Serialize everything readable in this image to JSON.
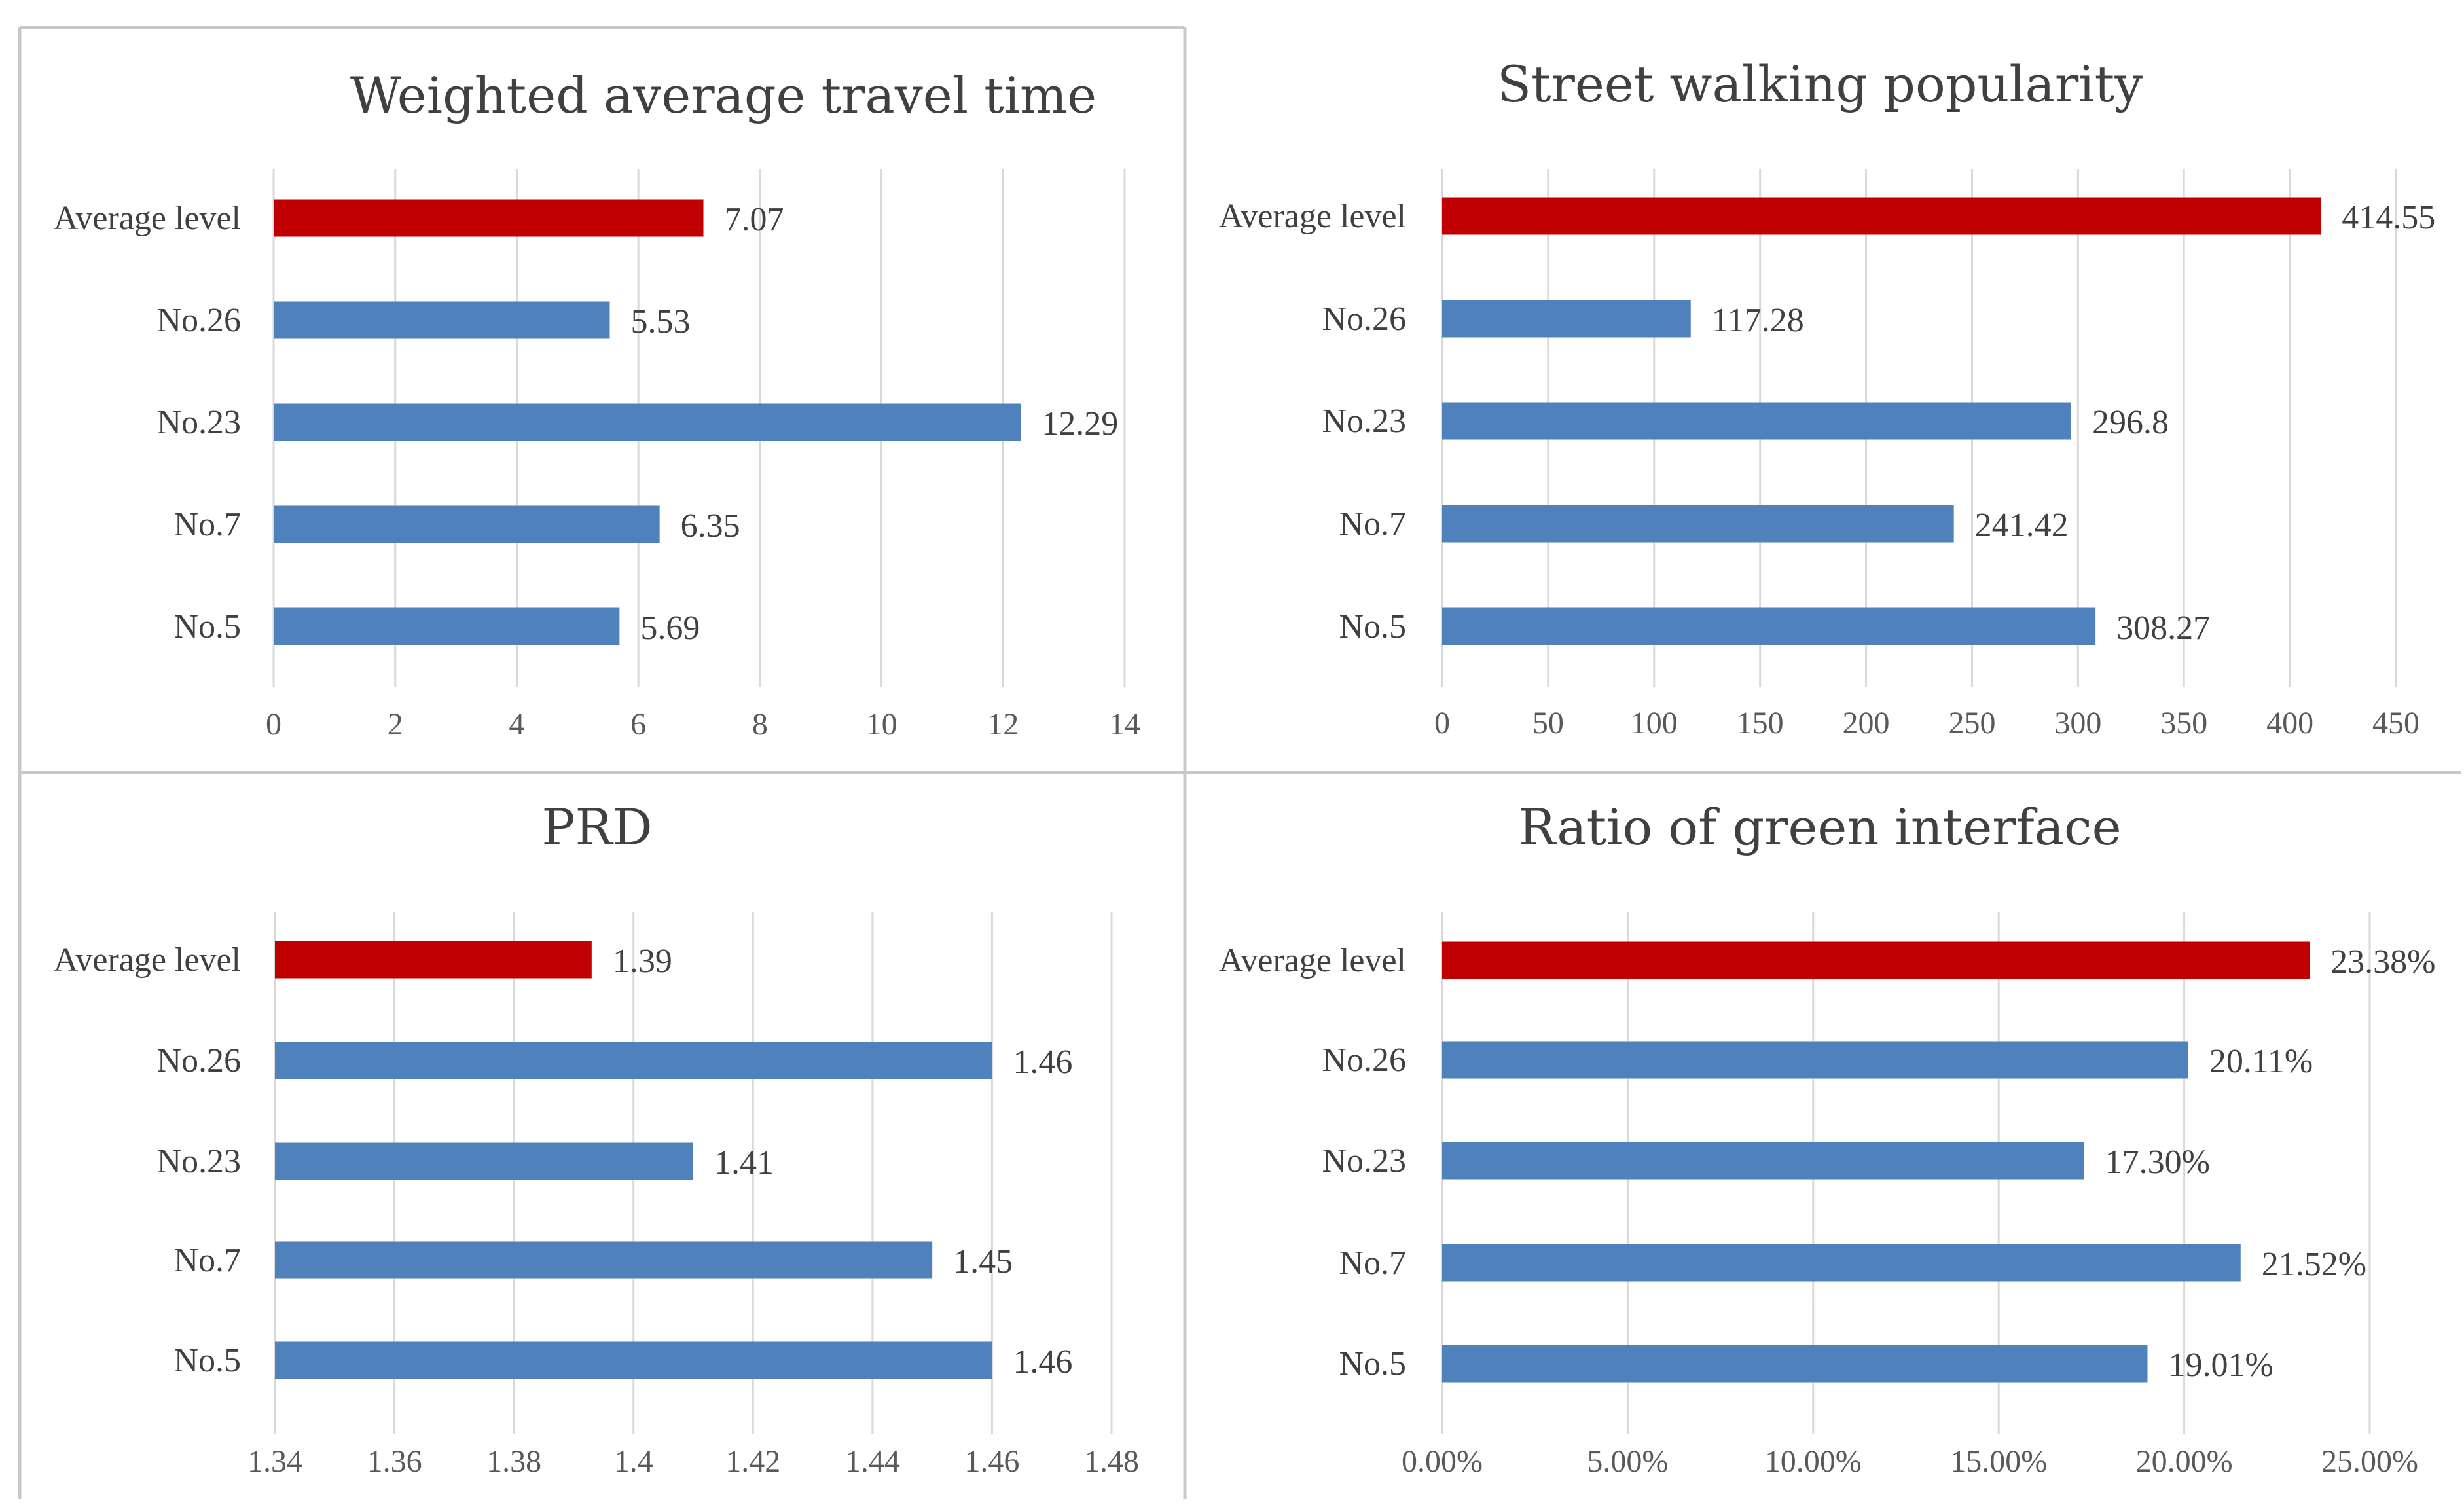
{
  "colors": {
    "average": "#c00000",
    "sample": "#4f81bd",
    "grid": "#d9d9d9",
    "text": "#404040",
    "frame": "#c8c8c8"
  },
  "chart_data": [
    {
      "type": "bar",
      "orientation": "horizontal",
      "title": "Weighted average travel time",
      "categories": [
        "Average level",
        "No.26",
        "No.23",
        "No.7",
        "No.5"
      ],
      "values": [
        7.07,
        5.53,
        12.29,
        6.35,
        5.69
      ],
      "value_labels": [
        "7.07",
        "5.53",
        "12.29",
        "6.35",
        "5.69"
      ],
      "highlight": [
        "Average level"
      ],
      "xlim": [
        0,
        14
      ],
      "ticks": [
        0,
        2,
        4,
        6,
        8,
        10,
        12,
        14
      ],
      "tick_labels": [
        "0",
        "2",
        "4",
        "6",
        "8",
        "10",
        "12",
        "14"
      ],
      "grid": true,
      "xlabel": "",
      "ylabel": ""
    },
    {
      "type": "bar",
      "orientation": "horizontal",
      "title": "Street walking popularity",
      "categories": [
        "Average level",
        "No.26",
        "No.23",
        "No.7",
        "No.5"
      ],
      "values": [
        414.55,
        117.28,
        296.8,
        241.42,
        308.27
      ],
      "value_labels": [
        "414.55",
        "117.28",
        "296.8",
        "241.42",
        "308.27"
      ],
      "highlight": [
        "Average level"
      ],
      "xlim": [
        0,
        450
      ],
      "ticks": [
        0,
        50,
        100,
        150,
        200,
        250,
        300,
        350,
        400,
        450
      ],
      "tick_labels": [
        "0",
        "50",
        "100",
        "150",
        "200",
        "250",
        "300",
        "350",
        "400",
        "450"
      ],
      "grid": true,
      "xlabel": "",
      "ylabel": ""
    },
    {
      "type": "bar",
      "orientation": "horizontal",
      "title": "PRD",
      "categories": [
        "Average level",
        "No.26",
        "No.23",
        "No.7",
        "No.5"
      ],
      "values": [
        1.393,
        1.46,
        1.41,
        1.45,
        1.46
      ],
      "value_labels": [
        "1.39",
        "1.46",
        "1.41",
        "1.45",
        "1.46"
      ],
      "highlight": [
        "Average level"
      ],
      "xlim": [
        1.34,
        1.48
      ],
      "ticks": [
        1.34,
        1.36,
        1.38,
        1.4,
        1.42,
        1.44,
        1.46,
        1.48
      ],
      "tick_labels": [
        "1.34",
        "1.36",
        "1.38",
        "1.4",
        "1.42",
        "1.44",
        "1.46",
        "1.48"
      ],
      "grid": true,
      "xlabel": "",
      "ylabel": ""
    },
    {
      "type": "bar",
      "orientation": "horizontal",
      "title": "Ratio of green interface",
      "categories": [
        "Average level",
        "No.26",
        "No.23",
        "No.7",
        "No.5"
      ],
      "values": [
        23.38,
        20.11,
        17.3,
        21.52,
        19.01
      ],
      "value_labels": [
        "23.38%",
        "20.11%",
        "17.30%",
        "21.52%",
        "19.01%"
      ],
      "highlight": [
        "Average level"
      ],
      "xlim": [
        0,
        25
      ],
      "ticks": [
        0,
        5,
        10,
        15,
        20,
        25
      ],
      "tick_labels": [
        "0.00%",
        "5.00%",
        "10.00%",
        "15.00%",
        "20.00%",
        "25.00%"
      ],
      "grid": true,
      "xlabel": "",
      "ylabel": ""
    }
  ]
}
